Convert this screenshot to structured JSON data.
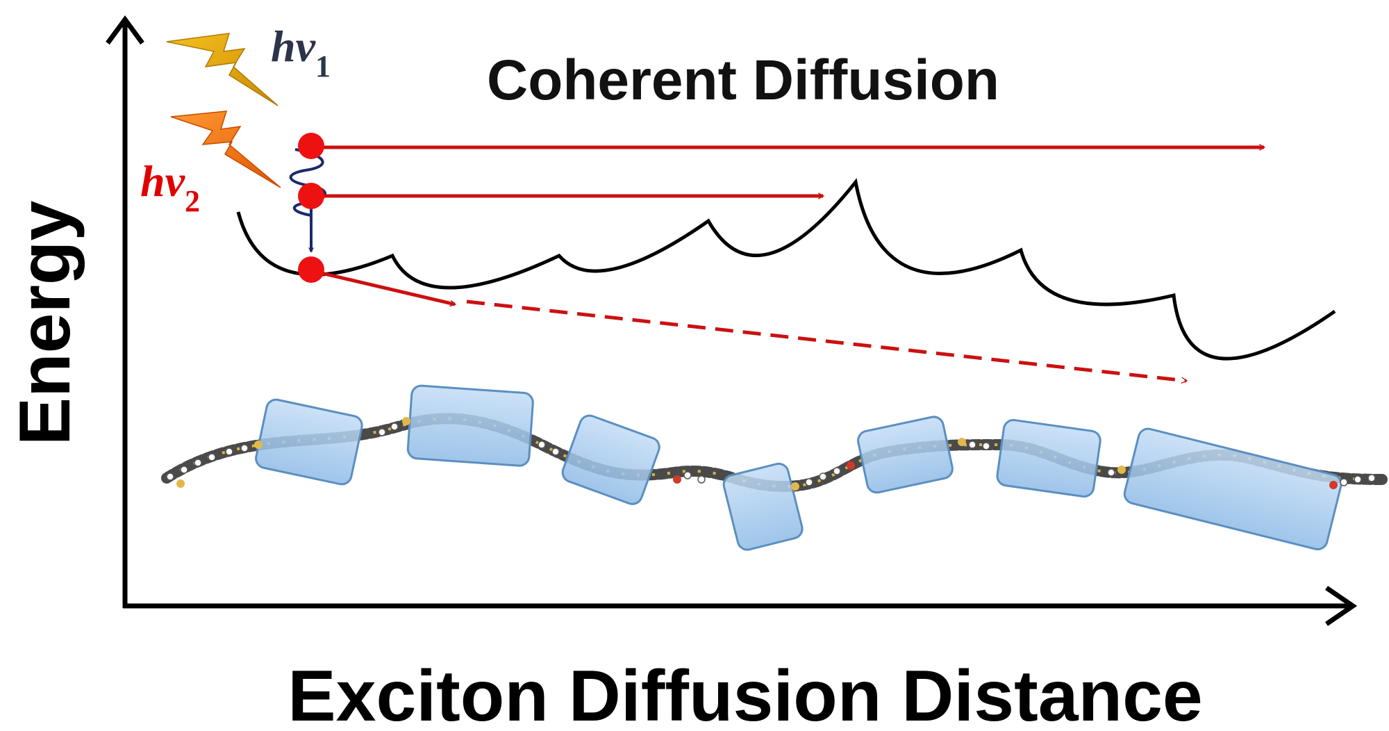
{
  "title": "Coherent Diffusion",
  "axes": {
    "x_label": "Exciton Diffusion Distance",
    "y_label": "Energy"
  },
  "photons": [
    {
      "symbol": "hν",
      "subscript": "1",
      "color": "#2b3448"
    },
    {
      "symbol": "hν",
      "subscript": "2",
      "color": "#e00000"
    }
  ],
  "colors": {
    "axis": "#000000",
    "arrow": "#cc1010",
    "exciton": "#ee1111",
    "relaxation": "#1a2a6c",
    "landscape": "#000000",
    "bolt1_top": "#f5c021",
    "bolt1_bottom": "#c98a00",
    "bolt2_top": "#ff9a33",
    "bolt2_bottom": "#e05500",
    "chain_segment_fill": "#9cc7ee",
    "chain_segment_edge": "#5a8fc0",
    "chain_atoms": "#555555"
  },
  "icons": [
    "lightning-bolt-icon",
    "lightning-bolt-icon",
    "polymer-chain-illustration"
  ]
}
